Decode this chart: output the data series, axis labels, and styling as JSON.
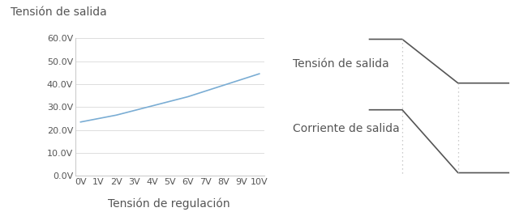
{
  "background_color": "#ffffff",
  "left_title": "Tensión de salida",
  "left_xlabel": "Tensión de regulación",
  "left_yticks": [
    "0.0V",
    "10.0V",
    "20.0V",
    "30.0V",
    "40.0V",
    "50.0V",
    "60.0V"
  ],
  "left_xticks": [
    "0V",
    "1V",
    "2V",
    "3V",
    "4V",
    "5V",
    "6V",
    "7V",
    "8V",
    "9V",
    "10V"
  ],
  "line_x": [
    0,
    1,
    2,
    3,
    4,
    5,
    6,
    7,
    8,
    9,
    10
  ],
  "line_y": [
    23.5,
    25.0,
    26.5,
    28.5,
    30.5,
    32.5,
    34.5,
    37.0,
    39.5,
    42.0,
    44.5
  ],
  "line_color": "#7aadd4",
  "grid_color": "#dddddd",
  "chart_border_color": "#cccccc",
  "right_label_tension": "Tensión de salida",
  "right_label_corriente": "Corriente de salida",
  "diagram_color": "#555555",
  "dotted_color": "#bbbbbb",
  "title_fontsize": 10,
  "axis_label_fontsize": 10,
  "tick_fontsize": 8,
  "text_color": "#555555"
}
